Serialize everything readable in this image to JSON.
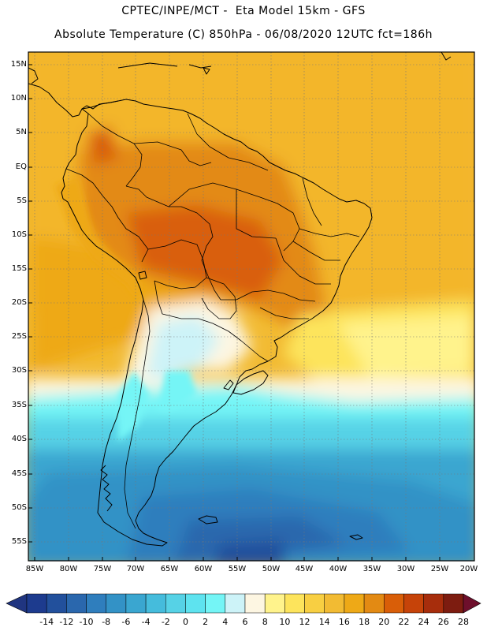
{
  "header": {
    "line1": "CPTEC/INPE/MCT -  Eta Model 15km - GFS",
    "line2": "Absolute Temperature (C) 850hPa - 06/08/2020 12UTC fct=186h"
  },
  "map": {
    "lat_labels": [
      "15N",
      "10N",
      "5N",
      "EQ",
      "5S",
      "10S",
      "15S",
      "20S",
      "25S",
      "30S",
      "35S",
      "40S",
      "45S",
      "50S",
      "55S"
    ],
    "lon_labels": [
      "85W",
      "80W",
      "75W",
      "70W",
      "65W",
      "60W",
      "55W",
      "50W",
      "45W",
      "40W",
      "35W",
      "30W",
      "25W",
      "20W"
    ],
    "lat_range": [
      16.5,
      -58.5
    ],
    "lon_range": [
      -86,
      -20
    ],
    "grid_lines": "dotted"
  },
  "colorbar": {
    "labels": [
      "-14",
      "-12",
      "-10",
      "-8",
      "-6",
      "-4",
      "-2",
      "0",
      "2",
      "4",
      "6",
      "8",
      "10",
      "12",
      "14",
      "16",
      "18",
      "20",
      "22",
      "24",
      "26",
      "28"
    ],
    "colors": [
      "#1d3b8e",
      "#22509c",
      "#2a67ad",
      "#2f7ebd",
      "#3392c6",
      "#3aa6d0",
      "#45bcdc",
      "#56d2e6",
      "#5ee3ef",
      "#74f5f6",
      "#cdf3f8",
      "#fdf6e2",
      "#fff38c",
      "#fde45c",
      "#f8cf42",
      "#f2bb33",
      "#eea917",
      "#e38a13",
      "#d95e08",
      "#c64309",
      "#a72d0c",
      "#7d1c10"
    ],
    "under_color": "#203580",
    "over_color": "#6e0f2c"
  }
}
